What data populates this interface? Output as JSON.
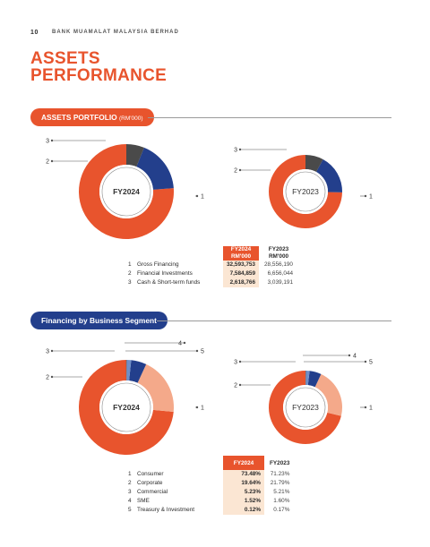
{
  "header": {
    "page_number": "10",
    "company": "BANK MUAMALAT MALAYSIA BERHAD"
  },
  "page_title_lines": [
    "ASSETS",
    "PERFORMANCE"
  ],
  "colors": {
    "primary": "#E8542D",
    "navy": "#233F8C",
    "dark": "#4A4A4A",
    "peach": "#F4A98A",
    "mid_blue": "#6F8FC8",
    "highlight": "#FBE6D3"
  },
  "section1": {
    "title": "ASSETS PORTFOLIO",
    "unit": "(RM'000)",
    "table": {
      "headers": [
        "FY2024\nRM'000",
        "FY2023\nRM'000"
      ],
      "rows": [
        {
          "no": "1",
          "label": "Gross Financing",
          "fy2024": "32,593,753",
          "fy2023": "28,556,190"
        },
        {
          "no": "2",
          "label": "Financial Investments",
          "fy2024": "7,584,859",
          "fy2023": "6,656,044"
        },
        {
          "no": "3",
          "label": "Cash & Short-term funds",
          "fy2024": "2,618,766",
          "fy2023": "3,039,191"
        }
      ]
    }
  },
  "section2": {
    "title": "Financing by Business Segment",
    "table": {
      "headers": [
        "FY2024",
        "FY2023"
      ],
      "rows": [
        {
          "no": "1",
          "label": "Consumer",
          "fy2024": "73.48%",
          "fy2023": "71.23%"
        },
        {
          "no": "2",
          "label": "Corporate",
          "fy2024": "19.64%",
          "fy2023": "21.79%"
        },
        {
          "no": "3",
          "label": "Commercial",
          "fy2024": "5.23%",
          "fy2023": "5.21%"
        },
        {
          "no": "4",
          "label": "SME",
          "fy2024": "1.52%",
          "fy2023": "1.60%"
        },
        {
          "no": "5",
          "label": "Treasury & Investment",
          "fy2024": "0.12%",
          "fy2023": "0.17%"
        }
      ]
    }
  },
  "chart_data": [
    {
      "type": "pie",
      "center_label": "FY2024",
      "categories": [
        "1",
        "2",
        "3"
      ],
      "values": [
        32593753,
        7584859,
        2618766
      ],
      "colors": [
        "#E8542D",
        "#233F8C",
        "#4A4A4A"
      ]
    },
    {
      "type": "pie",
      "center_label": "FY2023",
      "categories": [
        "1",
        "2",
        "3"
      ],
      "values": [
        28556190,
        6656044,
        3039191
      ],
      "colors": [
        "#E8542D",
        "#233F8C",
        "#4A4A4A"
      ]
    },
    {
      "type": "pie",
      "center_label": "FY2024",
      "categories": [
        "1",
        "2",
        "3",
        "4",
        "5"
      ],
      "values": [
        73.48,
        19.64,
        5.23,
        1.52,
        0.12
      ],
      "colors": [
        "#E8542D",
        "#F4A98A",
        "#233F8C",
        "#6F8FC8",
        "#4A4A4A"
      ]
    },
    {
      "type": "pie",
      "center_label": "FY2023",
      "categories": [
        "1",
        "2",
        "3",
        "4",
        "5"
      ],
      "values": [
        71.23,
        21.79,
        5.21,
        1.6,
        0.17
      ],
      "colors": [
        "#E8542D",
        "#F4A98A",
        "#233F8C",
        "#6F8FC8",
        "#4A4A4A"
      ]
    }
  ]
}
